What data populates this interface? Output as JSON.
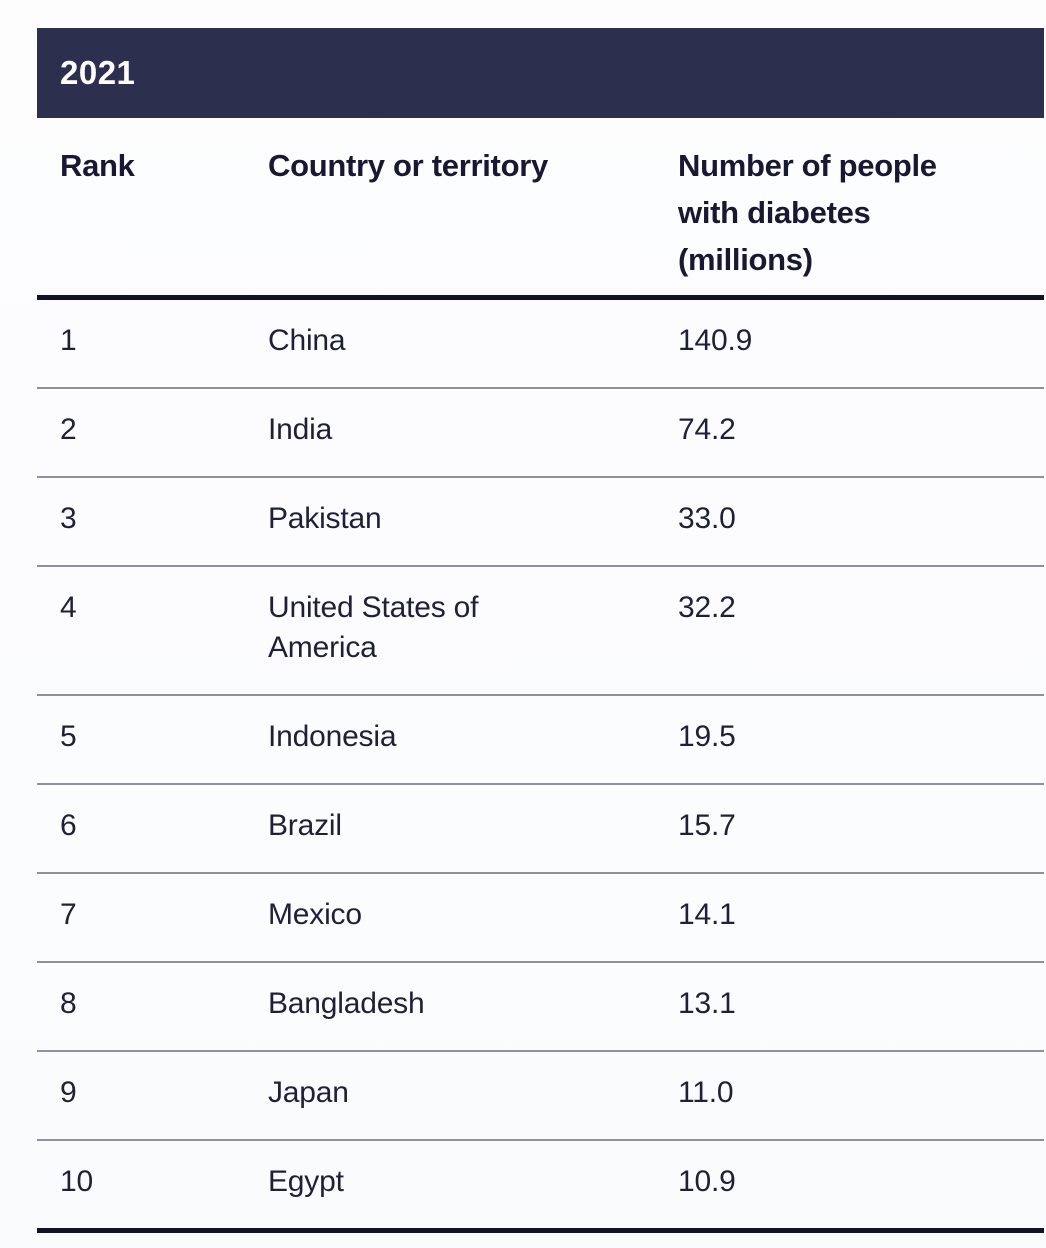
{
  "title_bar": {
    "year": "2021"
  },
  "table": {
    "headers": {
      "rank": "Rank",
      "country": "Country or territory",
      "number": "Number of people with diabetes (millions)"
    },
    "rows": [
      {
        "rank": "1",
        "country": "China",
        "value": "140.9"
      },
      {
        "rank": "2",
        "country": "India",
        "value": "74.2"
      },
      {
        "rank": "3",
        "country": "Pakistan",
        "value": "33.0"
      },
      {
        "rank": "4",
        "country": "United States of America",
        "value": "32.2"
      },
      {
        "rank": "5",
        "country": "Indonesia",
        "value": "19.5"
      },
      {
        "rank": "6",
        "country": "Brazil",
        "value": "15.7"
      },
      {
        "rank": "7",
        "country": "Mexico",
        "value": "14.1"
      },
      {
        "rank": "8",
        "country": "Bangladesh",
        "value": "13.1"
      },
      {
        "rank": "9",
        "country": "Japan",
        "value": "11.0"
      },
      {
        "rank": "10",
        "country": "Egypt",
        "value": "10.9"
      }
    ]
  },
  "colors": {
    "title_bar_bg": "#2d2f4e",
    "title_text": "#ffffff",
    "header_text": "#181832",
    "body_text": "#1f1f3a",
    "thick_rule": "#12122a",
    "thin_rule": "#8f8fa1",
    "page_bg": "#fcfdfe"
  },
  "chart_data": {
    "type": "table",
    "title": "2021",
    "columns": [
      "Rank",
      "Country or territory",
      "Number of people with diabetes (millions)"
    ],
    "rows": [
      [
        1,
        "China",
        140.9
      ],
      [
        2,
        "India",
        74.2
      ],
      [
        3,
        "Pakistan",
        33.0
      ],
      [
        4,
        "United States of America",
        32.2
      ],
      [
        5,
        "Indonesia",
        19.5
      ],
      [
        6,
        "Brazil",
        15.7
      ],
      [
        7,
        "Mexico",
        14.1
      ],
      [
        8,
        "Bangladesh",
        13.1
      ],
      [
        9,
        "Japan",
        11.0
      ],
      [
        10,
        "Egypt",
        10.9
      ]
    ]
  }
}
